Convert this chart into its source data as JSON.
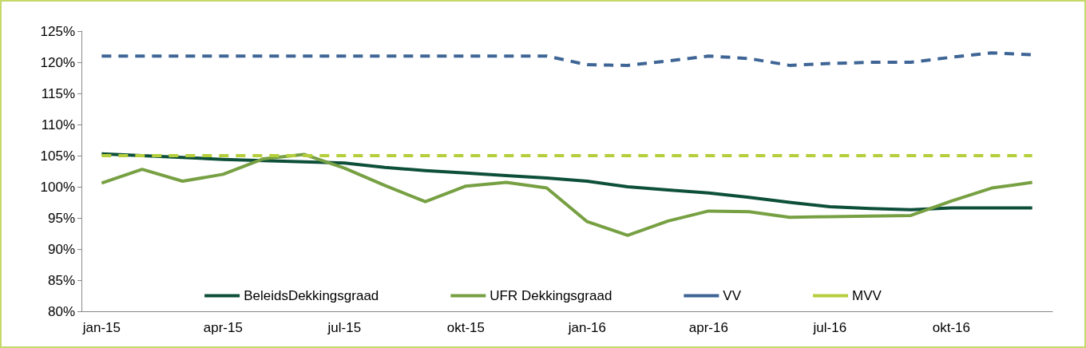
{
  "chart_data": {
    "type": "line",
    "categories": [
      "jan-15",
      null,
      null,
      "apr-15",
      null,
      null,
      "jul-15",
      null,
      null,
      "okt-15",
      null,
      null,
      "jan-16",
      null,
      null,
      "apr-16",
      null,
      null,
      "jul-16",
      null,
      null,
      "okt-16",
      null,
      null
    ],
    "series": [
      {
        "name": "BeleidsDekkingsgraad",
        "color": "#0d4f3a",
        "line_style": "solid",
        "values": [
          105.3,
          105.0,
          104.7,
          104.4,
          104.2,
          104.0,
          103.8,
          103.1,
          102.6,
          102.2,
          101.8,
          101.4,
          100.9,
          100.0,
          99.5,
          99.0,
          98.3,
          97.5,
          96.8,
          96.5,
          96.3,
          96.6,
          96.6,
          96.6
        ]
      },
      {
        "name": "UFR Dekkingsgraad",
        "color": "#77a043",
        "line_style": "solid",
        "values": [
          100.6,
          102.8,
          100.9,
          102.0,
          104.5,
          105.2,
          103.0,
          100.2,
          97.6,
          100.1,
          100.7,
          99.8,
          94.4,
          92.2,
          94.5,
          96.1,
          96.0,
          95.1,
          95.2,
          95.3,
          95.4,
          97.7,
          99.8,
          100.7
        ]
      },
      {
        "name": "VV",
        "color": "#3e6595",
        "line_style": "dashed",
        "values": [
          121,
          121,
          121,
          121,
          121,
          121,
          121,
          121,
          121,
          121,
          121,
          121,
          119.6,
          119.5,
          120.2,
          121.0,
          120.6,
          119.5,
          119.8,
          120.0,
          120.0,
          120.8,
          121.5,
          121.2
        ]
      },
      {
        "name": "MVV",
        "color": "#b5cf3c",
        "line_style": "dashed",
        "values": [
          105,
          105,
          105,
          105,
          105,
          105,
          105,
          105,
          105,
          105,
          105,
          105,
          105,
          105,
          105,
          105,
          105,
          105,
          105,
          105,
          105,
          105,
          105,
          105
        ]
      }
    ],
    "ylim": [
      80,
      125
    ],
    "yticks": [
      {
        "value": 80,
        "label": "80%"
      },
      {
        "value": 85,
        "label": "85%"
      },
      {
        "value": 90,
        "label": "90%"
      },
      {
        "value": 95,
        "label": "95%"
      },
      {
        "value": 100,
        "label": "100%"
      },
      {
        "value": 105,
        "label": "105%"
      },
      {
        "value": 110,
        "label": "110%"
      },
      {
        "value": 115,
        "label": "115%"
      },
      {
        "value": 120,
        "label": "120%"
      },
      {
        "value": 125,
        "label": "125%"
      }
    ],
    "grid": false,
    "legend": "bottom",
    "marker": "none"
  }
}
